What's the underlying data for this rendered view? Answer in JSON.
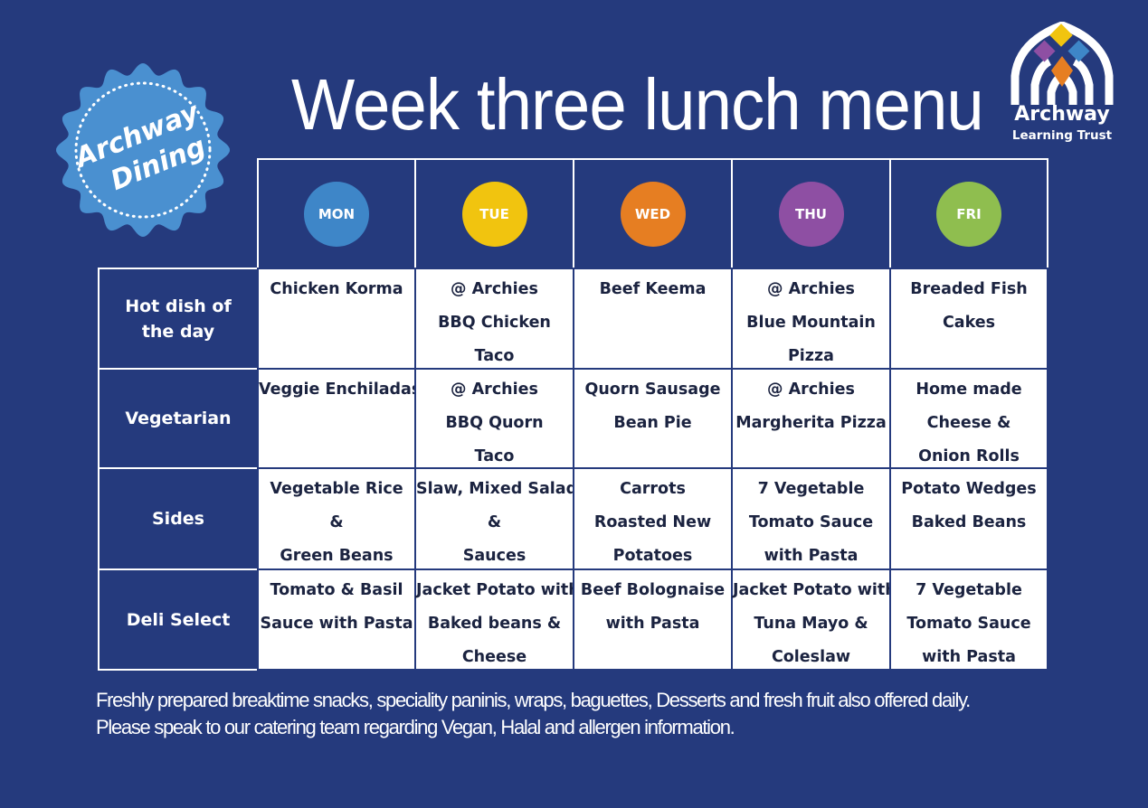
{
  "title": "Week three lunch menu",
  "badge": {
    "line1": "Archway",
    "line2": "Dining"
  },
  "logo": {
    "name": "Archway",
    "subtitle": "Learning Trust"
  },
  "days": [
    {
      "label": "MON",
      "color": "#3e86c8"
    },
    {
      "label": "TUE",
      "color": "#f1c40f"
    },
    {
      "label": "WED",
      "color": "#e67e22"
    },
    {
      "label": "THU",
      "color": "#8e4fa3"
    },
    {
      "label": "FRI",
      "color": "#8fbe4f"
    }
  ],
  "rows": [
    {
      "label": "Hot dish of the day",
      "cells": [
        [
          "Chicken Korma"
        ],
        [
          "@ Archies",
          "BBQ Chicken",
          "Taco"
        ],
        [
          "Beef Keema"
        ],
        [
          "@ Archies",
          "Blue Mountain",
          "Pizza"
        ],
        [
          "Breaded Fish",
          "Cakes"
        ]
      ]
    },
    {
      "label": "Vegetarian",
      "cells": [
        [
          "Veggie Enchiladas"
        ],
        [
          "@ Archies",
          "BBQ Quorn",
          "Taco"
        ],
        [
          "Quorn Sausage",
          "Bean Pie"
        ],
        [
          "@ Archies",
          "Margherita Pizza"
        ],
        [
          "Home made",
          "Cheese &",
          "Onion Rolls"
        ]
      ]
    },
    {
      "label": "Sides",
      "cells": [
        [
          "Vegetable Rice",
          "&",
          "Green Beans"
        ],
        [
          "Slaw, Mixed Salad",
          "&",
          "Sauces"
        ],
        [
          "Carrots",
          "Roasted New",
          "Potatoes"
        ],
        [
          "7 Vegetable",
          "Tomato Sauce",
          "with Pasta"
        ],
        [
          "Potato Wedges",
          "Baked Beans"
        ]
      ]
    },
    {
      "label": "Deli Select",
      "cells": [
        [
          "Tomato & Basil",
          "Sauce with Pasta"
        ],
        [
          "Jacket Potato with",
          "Baked beans &",
          "Cheese"
        ],
        [
          "Beef Bolognaise",
          "with Pasta"
        ],
        [
          "Jacket Potato with",
          "Tuna Mayo  &",
          "Coleslaw"
        ],
        [
          "7 Vegetable",
          "Tomato Sauce",
          "with Pasta"
        ]
      ]
    }
  ],
  "footer": {
    "line1": "Freshly prepared breaktime snacks, speciality paninis, wraps, baguettes, Desserts and fresh fruit also offered daily.",
    "line2": "Please speak to our catering team regarding Vegan, Halal and allergen information."
  }
}
